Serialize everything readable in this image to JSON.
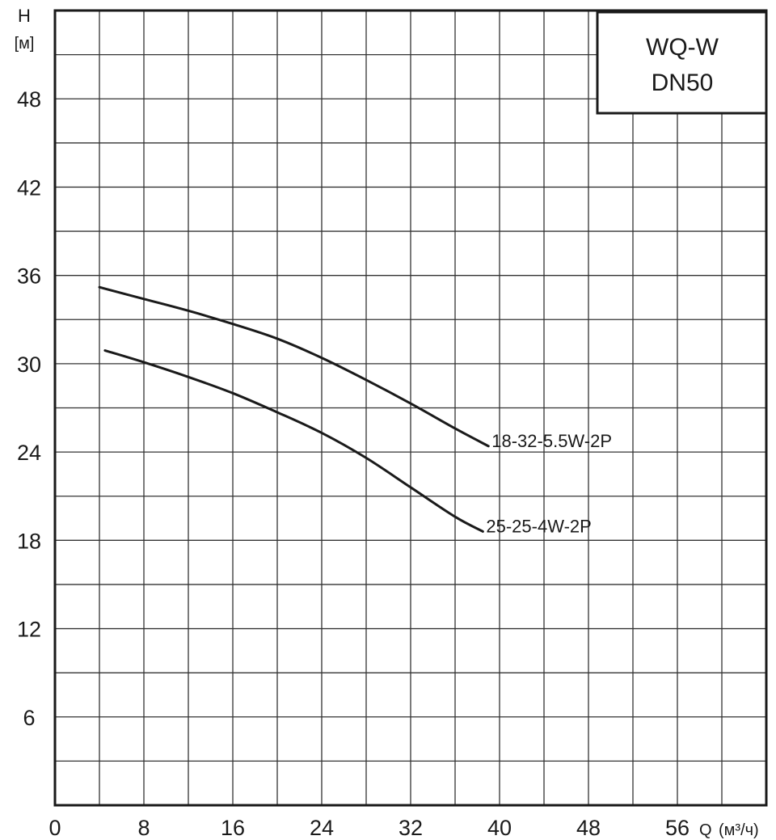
{
  "chart_data": {
    "type": "line",
    "title_lines": [
      "WQ-W",
      "DN50"
    ],
    "ylabel": "H",
    "ylabel_unit": "[м]",
    "xlabel": "Q",
    "xlabel_unit": "(м³/ч)",
    "xlim": [
      0,
      64
    ],
    "ylim": [
      0,
      54
    ],
    "x_ticks": [
      0,
      8,
      16,
      24,
      32,
      40,
      48,
      56
    ],
    "y_ticks": [
      6,
      12,
      18,
      24,
      30,
      36,
      42,
      48
    ],
    "grid": true,
    "series": [
      {
        "name": "18-32-5.5W-2P",
        "x": [
          4,
          8,
          12,
          16,
          20,
          24,
          28,
          32,
          36,
          39
        ],
        "y": [
          35.2,
          34.4,
          33.6,
          32.7,
          31.7,
          30.4,
          28.9,
          27.3,
          25.6,
          24.4
        ]
      },
      {
        "name": "25-25-4W-2P",
        "x": [
          4.5,
          8,
          12,
          16,
          20,
          24,
          28,
          32,
          36,
          38.5
        ],
        "y": [
          30.9,
          30.1,
          29.1,
          28.0,
          26.7,
          25.3,
          23.6,
          21.6,
          19.6,
          18.6
        ]
      }
    ],
    "colors": {
      "line": "#1a1a1a",
      "grid": "#333333",
      "background": "#ffffff"
    }
  }
}
